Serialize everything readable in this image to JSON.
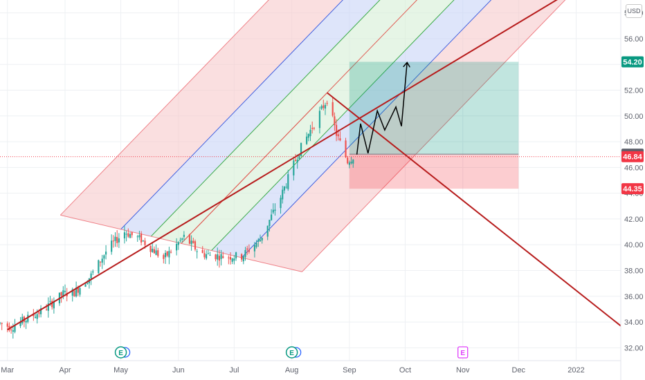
{
  "chart_data": {
    "type": "candlestick",
    "currency": "USD",
    "ylim": [
      31,
      59
    ],
    "y_ticks": [
      "32.00",
      "34.00",
      "36.00",
      "38.00",
      "40.00",
      "42.00",
      "44.00",
      "46.00",
      "48.00",
      "50.00",
      "52.00",
      "54.00",
      "56.00",
      "58.00"
    ],
    "x_ticks": [
      {
        "label": "Mar",
        "date": "2021-03-01"
      },
      {
        "label": "Apr",
        "date": "2021-04-01"
      },
      {
        "label": "May",
        "date": "2021-05-01"
      },
      {
        "label": "Jun",
        "date": "2021-06-01"
      },
      {
        "label": "Jul",
        "date": "2021-07-01"
      },
      {
        "label": "Aug",
        "date": "2021-08-01"
      },
      {
        "label": "Sep",
        "date": "2021-09-01"
      },
      {
        "label": "Oct",
        "date": "2021-10-01"
      },
      {
        "label": "Nov",
        "date": "2021-11-01"
      },
      {
        "label": "Dec",
        "date": "2021-12-01"
      },
      {
        "label": "2022",
        "date": "2022-01-01"
      }
    ],
    "x_range": [
      "2021-02-25",
      "2022-01-25"
    ],
    "grid": true,
    "price_anchors": [
      {
        "date": "2021-02-25",
        "price": 33.9
      },
      {
        "date": "2021-03-03",
        "price": 33.6
      },
      {
        "date": "2021-03-20",
        "price": 34.9
      },
      {
        "date": "2021-03-31",
        "price": 36.2
      },
      {
        "date": "2021-04-06",
        "price": 36.3
      },
      {
        "date": "2021-04-15",
        "price": 37.6
      },
      {
        "date": "2021-04-24",
        "price": 39.7
      },
      {
        "date": "2021-05-03",
        "price": 41.0
      },
      {
        "date": "2021-05-12",
        "price": 40.4
      },
      {
        "date": "2021-05-24",
        "price": 38.9
      },
      {
        "date": "2021-06-04",
        "price": 40.6
      },
      {
        "date": "2021-06-13",
        "price": 39.3
      },
      {
        "date": "2021-06-24",
        "price": 39.1
      },
      {
        "date": "2021-07-05",
        "price": 39.1
      },
      {
        "date": "2021-07-15",
        "price": 40.4
      },
      {
        "date": "2021-07-26",
        "price": 43.7
      },
      {
        "date": "2021-08-05",
        "price": 47.3
      },
      {
        "date": "2021-08-13",
        "price": 49.4
      },
      {
        "date": "2021-08-20",
        "price": 51.3
      },
      {
        "date": "2021-08-25",
        "price": 48.6
      },
      {
        "date": "2021-08-31",
        "price": 46.5
      },
      {
        "date": "2021-09-03",
        "price": 46.84
      }
    ],
    "pitchfork": {
      "points": [
        {
          "date": "2021-05-01",
          "price": 41.2
        },
        {
          "date": "2021-07-05",
          "price": 39.0
        },
        {
          "date": "2021-08-20",
          "price": 51.8
        }
      ],
      "bands": [
        {
          "level": "outer",
          "fill": "#f7c9cc",
          "line": "#ef7f86"
        },
        {
          "level": "quarter",
          "fill": "#c8d3f7",
          "line": "#3f5fe0"
        },
        {
          "level": "eighth",
          "fill": "#d5efd6",
          "line": "#3bab49"
        },
        {
          "level": "median",
          "line": "#e05a52"
        }
      ]
    },
    "trendlines": [
      {
        "from": {
          "date": "2021-03-01",
          "price": 33.4
        },
        "to": {
          "date": "2022-01-25",
          "price": 62.0
        },
        "color": "#b71c1c"
      },
      {
        "from": {
          "date": "2021-08-20",
          "price": 51.8
        },
        "to": {
          "date": "2022-01-25",
          "price": 33.7
        },
        "color": "#b71c1c"
      }
    ],
    "position": {
      "type": "long",
      "start": "2021-09-01",
      "end": "2021-12-01",
      "entry": 47.03,
      "target": 54.2,
      "stop": 44.35
    },
    "projection_path": [
      {
        "date": "2021-09-05",
        "price": 47.0
      },
      {
        "date": "2021-09-07",
        "price": 49.4
      },
      {
        "date": "2021-09-11",
        "price": 47.1
      },
      {
        "date": "2021-09-16",
        "price": 50.4
      },
      {
        "date": "2021-09-20",
        "price": 48.9
      },
      {
        "date": "2021-09-26",
        "price": 50.7
      },
      {
        "date": "2021-09-29",
        "price": 49.2
      },
      {
        "date": "2021-10-02",
        "price": 54.1
      }
    ],
    "last_price": 46.84,
    "price_labels": [
      {
        "value": "54.20",
        "price": 54.2,
        "bg": "#089981"
      },
      {
        "value": "47.03",
        "price": 47.03,
        "bg": "#5d606b"
      },
      {
        "value": "46.84",
        "price": 46.84,
        "bg": "#f23645"
      },
      {
        "value": "44.35",
        "price": 44.35,
        "bg": "#f23645"
      }
    ],
    "earnings_events": [
      {
        "date": "2021-05-01",
        "label": "E",
        "reported": true
      },
      {
        "date": "2021-08-01",
        "label": "E",
        "reported": true
      },
      {
        "date": "2021-11-01",
        "label": "E",
        "reported": false
      }
    ],
    "colors": {
      "up": "#26a69a",
      "down": "#ef5350",
      "grid": "#eef0f3",
      "axis_text": "#5d606b"
    }
  }
}
